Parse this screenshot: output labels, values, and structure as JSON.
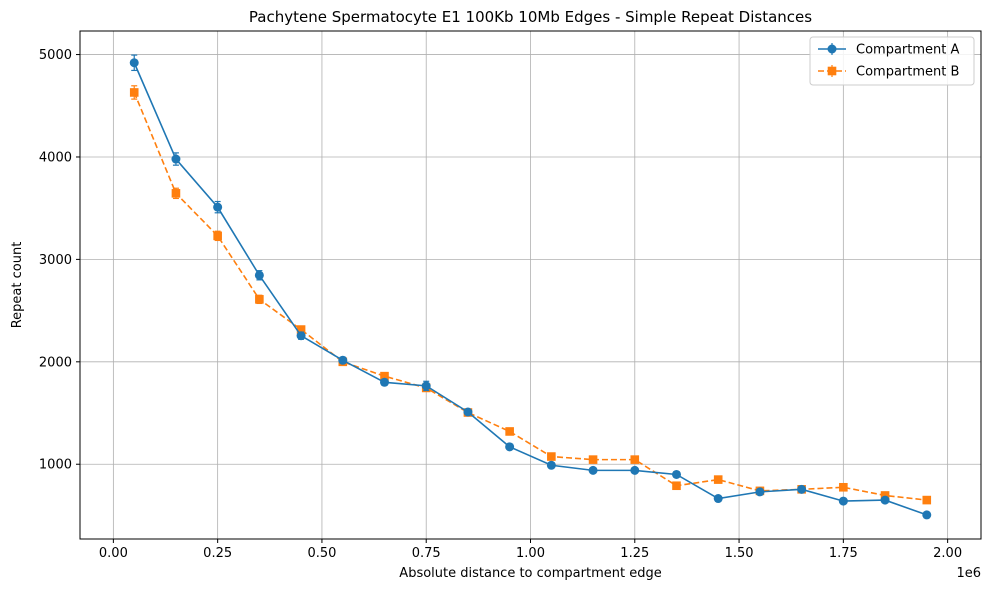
{
  "chart_data": {
    "type": "line",
    "title": "Pachytene Spermatocyte E1 100Kb 10Mb Edges - Simple Repeat Distances",
    "xlabel": "Absolute distance to compartment edge",
    "ylabel": "Repeat count",
    "x_offset_label": "1e6",
    "x_scale": 1000000,
    "xlim": [
      -80000,
      2080000
    ],
    "ylim": [
      270,
      5230
    ],
    "xticks": [
      0,
      250000,
      500000,
      750000,
      1000000,
      1250000,
      1500000,
      1750000,
      2000000
    ],
    "xtick_labels": [
      "0.00",
      "0.25",
      "0.50",
      "0.75",
      "1.00",
      "1.25",
      "1.50",
      "1.75",
      "2.00"
    ],
    "yticks": [
      1000,
      2000,
      3000,
      4000,
      5000
    ],
    "ytick_labels": [
      "1000",
      "2000",
      "3000",
      "4000",
      "5000"
    ],
    "grid": true,
    "legend_position": "top-right",
    "x": [
      50000,
      150000,
      250000,
      350000,
      450000,
      550000,
      650000,
      750000,
      850000,
      950000,
      1050000,
      1150000,
      1250000,
      1350000,
      1450000,
      1550000,
      1650000,
      1750000,
      1850000,
      1950000
    ],
    "series": [
      {
        "name": "Compartment A",
        "color": "#1f77b4",
        "marker": "circle",
        "linestyle": "solid",
        "values": [
          4920,
          3980,
          3510,
          2845,
          2255,
          2015,
          1800,
          1765,
          1510,
          1170,
          990,
          940,
          940,
          900,
          665,
          730,
          755,
          640,
          650,
          505
        ],
        "errors": [
          75,
          60,
          55,
          45,
          35,
          30,
          30,
          45,
          25,
          20,
          15,
          15,
          15,
          15,
          15,
          15,
          15,
          15,
          15,
          15
        ]
      },
      {
        "name": "Compartment B",
        "color": "#ff7f0e",
        "marker": "square",
        "linestyle": "dashed",
        "values": [
          4630,
          3645,
          3230,
          2610,
          2315,
          2000,
          1860,
          1745,
          1505,
          1320,
          1075,
          1045,
          1045,
          790,
          850,
          740,
          755,
          775,
          695,
          650
        ],
        "errors": [
          65,
          50,
          45,
          40,
          30,
          25,
          25,
          25,
          20,
          20,
          15,
          15,
          15,
          15,
          15,
          15,
          15,
          15,
          15,
          15
        ]
      }
    ]
  }
}
